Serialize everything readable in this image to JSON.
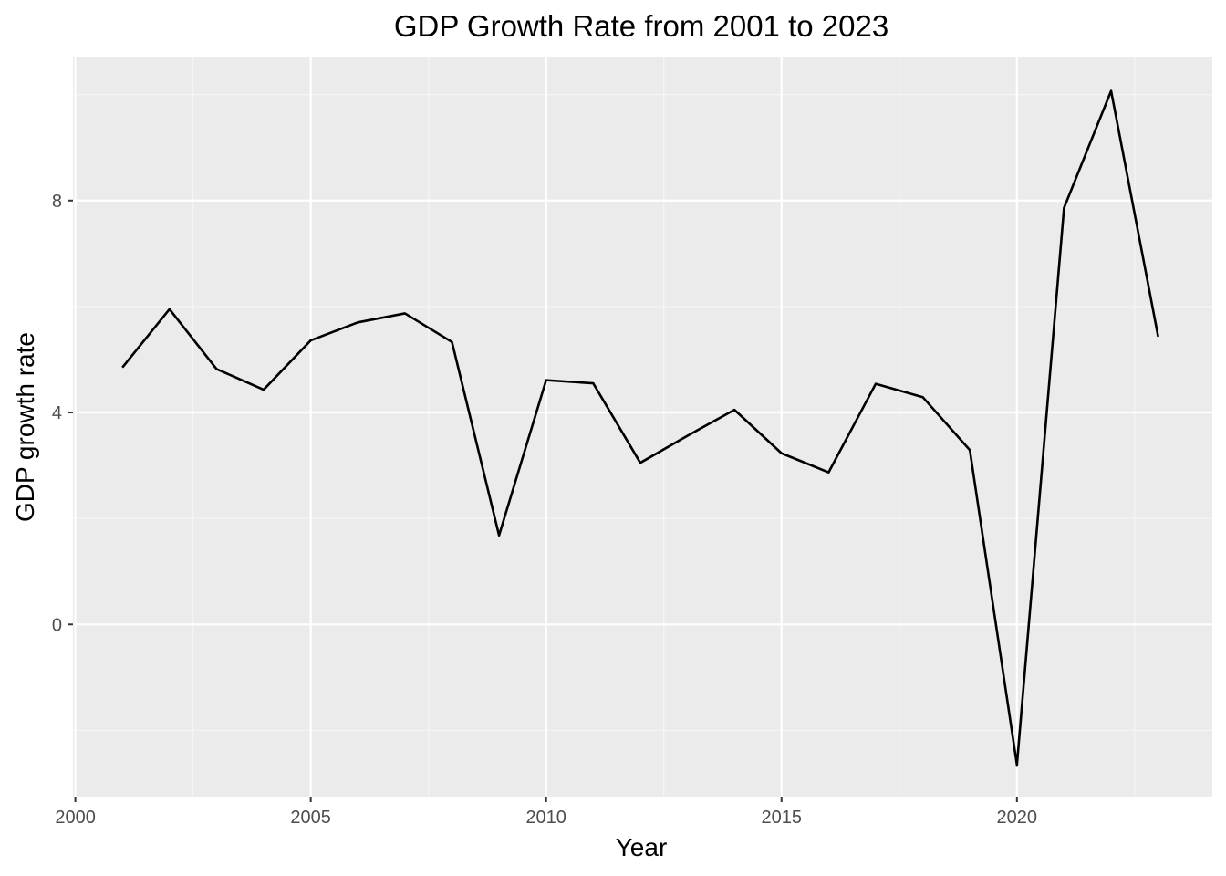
{
  "chart_data": {
    "type": "line",
    "title": "GDP Growth Rate from 2001 to 2023",
    "xlabel": "Year",
    "ylabel": "GDP growth rate",
    "x": [
      2001,
      2002,
      2003,
      2004,
      2005,
      2006,
      2007,
      2008,
      2009,
      2010,
      2011,
      2012,
      2013,
      2014,
      2015,
      2016,
      2017,
      2018,
      2019,
      2020,
      2021,
      2022,
      2023
    ],
    "series": [
      {
        "values": [
          4.85,
          5.95,
          4.82,
          4.43,
          5.36,
          5.7,
          5.87,
          5.33,
          1.68,
          4.61,
          4.55,
          3.05,
          3.56,
          4.05,
          3.23,
          2.87,
          4.54,
          4.29,
          3.29,
          -2.65,
          7.86,
          10.07,
          5.43
        ]
      }
    ],
    "xlim": [
      1999.95,
      2024.15
    ],
    "ylim": [
      -3.25,
      10.7
    ],
    "x_ticks": [
      2000,
      2005,
      2010,
      2015,
      2020
    ],
    "y_ticks": [
      0,
      4,
      8
    ],
    "grid": true,
    "legend": "none",
    "colors": {
      "panel_background": "#ebebeb",
      "grid_major": "#ffffff",
      "grid_minor": "#f5f5f5",
      "line": "#000000",
      "tick_label": "#4d4d4d"
    }
  }
}
